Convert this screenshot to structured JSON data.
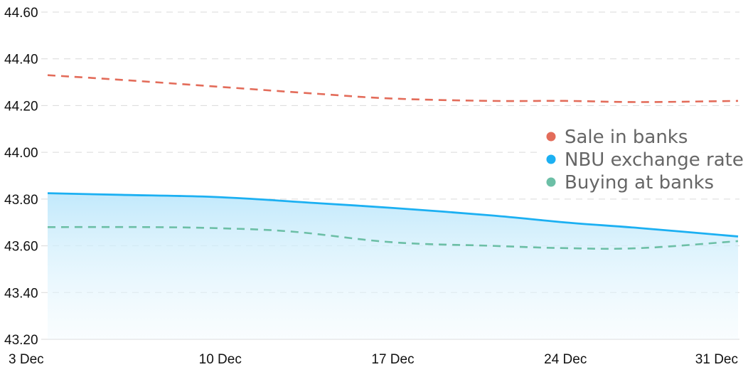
{
  "chart_data": {
    "type": "line",
    "title": "",
    "xlabel": "",
    "ylabel": "",
    "x_ticks": [
      {
        "x": 0,
        "label": "3 Dec"
      },
      {
        "x": 7,
        "label": "10 Dec"
      },
      {
        "x": 14,
        "label": "17 Dec"
      },
      {
        "x": 21,
        "label": "24 Dec"
      },
      {
        "x": 28,
        "label": "31 Dec"
      }
    ],
    "xlim": [
      0,
      28
    ],
    "ylim": [
      43.2,
      44.6
    ],
    "y_ticks": [
      {
        "value": 43.2,
        "label": "43.20"
      },
      {
        "value": 43.4,
        "label": "43.40"
      },
      {
        "value": 43.6,
        "label": "43.60"
      },
      {
        "value": 43.8,
        "label": "43.80"
      },
      {
        "value": 44.0,
        "label": "44.00"
      },
      {
        "value": 44.2,
        "label": "44.20"
      },
      {
        "value": 44.4,
        "label": "44.40"
      },
      {
        "value": 44.6,
        "label": "44.60"
      }
    ],
    "grid": true,
    "legend_position": "right",
    "series": [
      {
        "name": "Sale in banks",
        "color": "#e36c5a",
        "style": "dashed",
        "fill": false,
        "points": [
          [
            0,
            44.33
          ],
          [
            3,
            44.31
          ],
          [
            7,
            44.28
          ],
          [
            11,
            44.25
          ],
          [
            14,
            44.23
          ],
          [
            18,
            44.22
          ],
          [
            21,
            44.22
          ],
          [
            24,
            44.215
          ],
          [
            28,
            44.22
          ]
        ]
      },
      {
        "name": "NBU exchange rate",
        "color": "#1cb0f2",
        "style": "solid",
        "fill": true,
        "points": [
          [
            0,
            43.825
          ],
          [
            3,
            43.818
          ],
          [
            7,
            43.808
          ],
          [
            11,
            43.782
          ],
          [
            14,
            43.762
          ],
          [
            18,
            43.73
          ],
          [
            21,
            43.7
          ],
          [
            24,
            43.676
          ],
          [
            28,
            43.64
          ]
        ]
      },
      {
        "name": "Buying at banks",
        "color": "#6cbfa6",
        "style": "dashed",
        "fill": false,
        "points": [
          [
            0,
            43.68
          ],
          [
            4,
            43.68
          ],
          [
            7,
            43.675
          ],
          [
            10,
            43.66
          ],
          [
            14,
            43.615
          ],
          [
            18,
            43.6
          ],
          [
            21,
            43.59
          ],
          [
            24,
            43.59
          ],
          [
            28,
            43.62
          ]
        ]
      }
    ]
  }
}
